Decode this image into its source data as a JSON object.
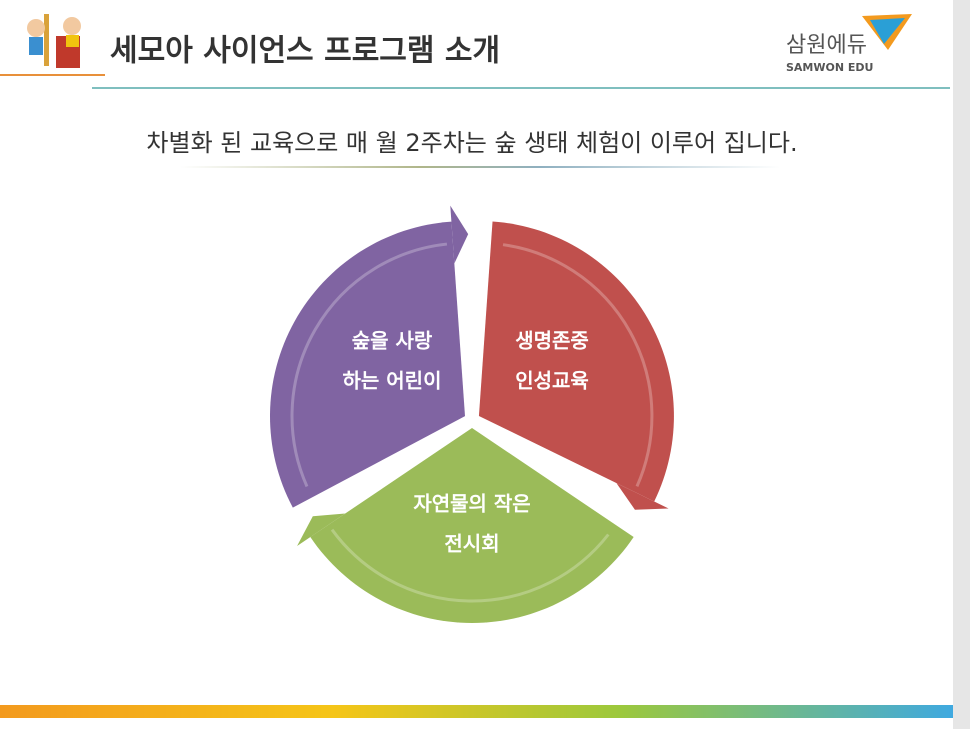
{
  "header": {
    "title": "세모아 사이언스 프로그램 소개",
    "logo": {
      "name": "삼원에듀",
      "sub": "SAMWON EDU"
    }
  },
  "subtitle": "차별화 된 교육으로 매 월 2주차는 숲 생태 체험이 이루어 집니다.",
  "cycle": [
    {
      "lines": [
        "숲을 사랑",
        "하는 어린이"
      ]
    },
    {
      "lines": [
        "생명존중",
        "인성교육"
      ]
    },
    {
      "lines": [
        "자연물의 작은",
        "전시회"
      ]
    }
  ]
}
